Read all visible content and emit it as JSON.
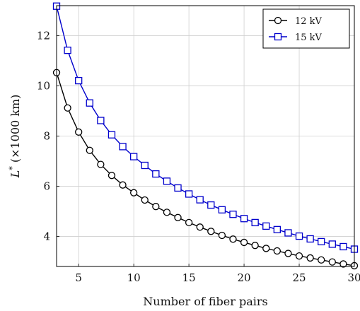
{
  "chart_data": {
    "type": "line",
    "xlabel": "Number of fiber pairs",
    "ylabel_main": "L",
    "ylabel_sup": "*",
    "ylabel_unit": " (×1000 km)",
    "xlim": [
      3,
      30
    ],
    "ylim": [
      2.8,
      13.2
    ],
    "xticks": [
      5,
      10,
      15,
      20,
      25,
      30
    ],
    "yticks": [
      4,
      6,
      8,
      10,
      12
    ],
    "grid": true,
    "legend_position": "top-right",
    "x": [
      3,
      4,
      5,
      6,
      7,
      8,
      9,
      10,
      11,
      12,
      13,
      14,
      15,
      16,
      17,
      18,
      19,
      20,
      21,
      22,
      23,
      24,
      25,
      26,
      27,
      28,
      29,
      30
    ],
    "series": [
      {
        "name": "12 kV",
        "color": "#000000",
        "marker": "circle",
        "values": [
          10.53,
          9.12,
          8.16,
          7.43,
          6.87,
          6.43,
          6.05,
          5.74,
          5.45,
          5.19,
          4.96,
          4.75,
          4.55,
          4.37,
          4.2,
          4.04,
          3.89,
          3.76,
          3.64,
          3.52,
          3.42,
          3.32,
          3.22,
          3.14,
          3.06,
          2.98,
          2.9,
          2.83
        ]
      },
      {
        "name": "15 kV",
        "color": "#0000cc",
        "marker": "square",
        "values": [
          13.18,
          11.42,
          10.21,
          9.32,
          8.62,
          8.05,
          7.58,
          7.18,
          6.83,
          6.49,
          6.2,
          5.93,
          5.69,
          5.46,
          5.25,
          5.06,
          4.88,
          4.71,
          4.55,
          4.41,
          4.27,
          4.14,
          4.01,
          3.9,
          3.79,
          3.69,
          3.59,
          3.49
        ]
      }
    ]
  }
}
